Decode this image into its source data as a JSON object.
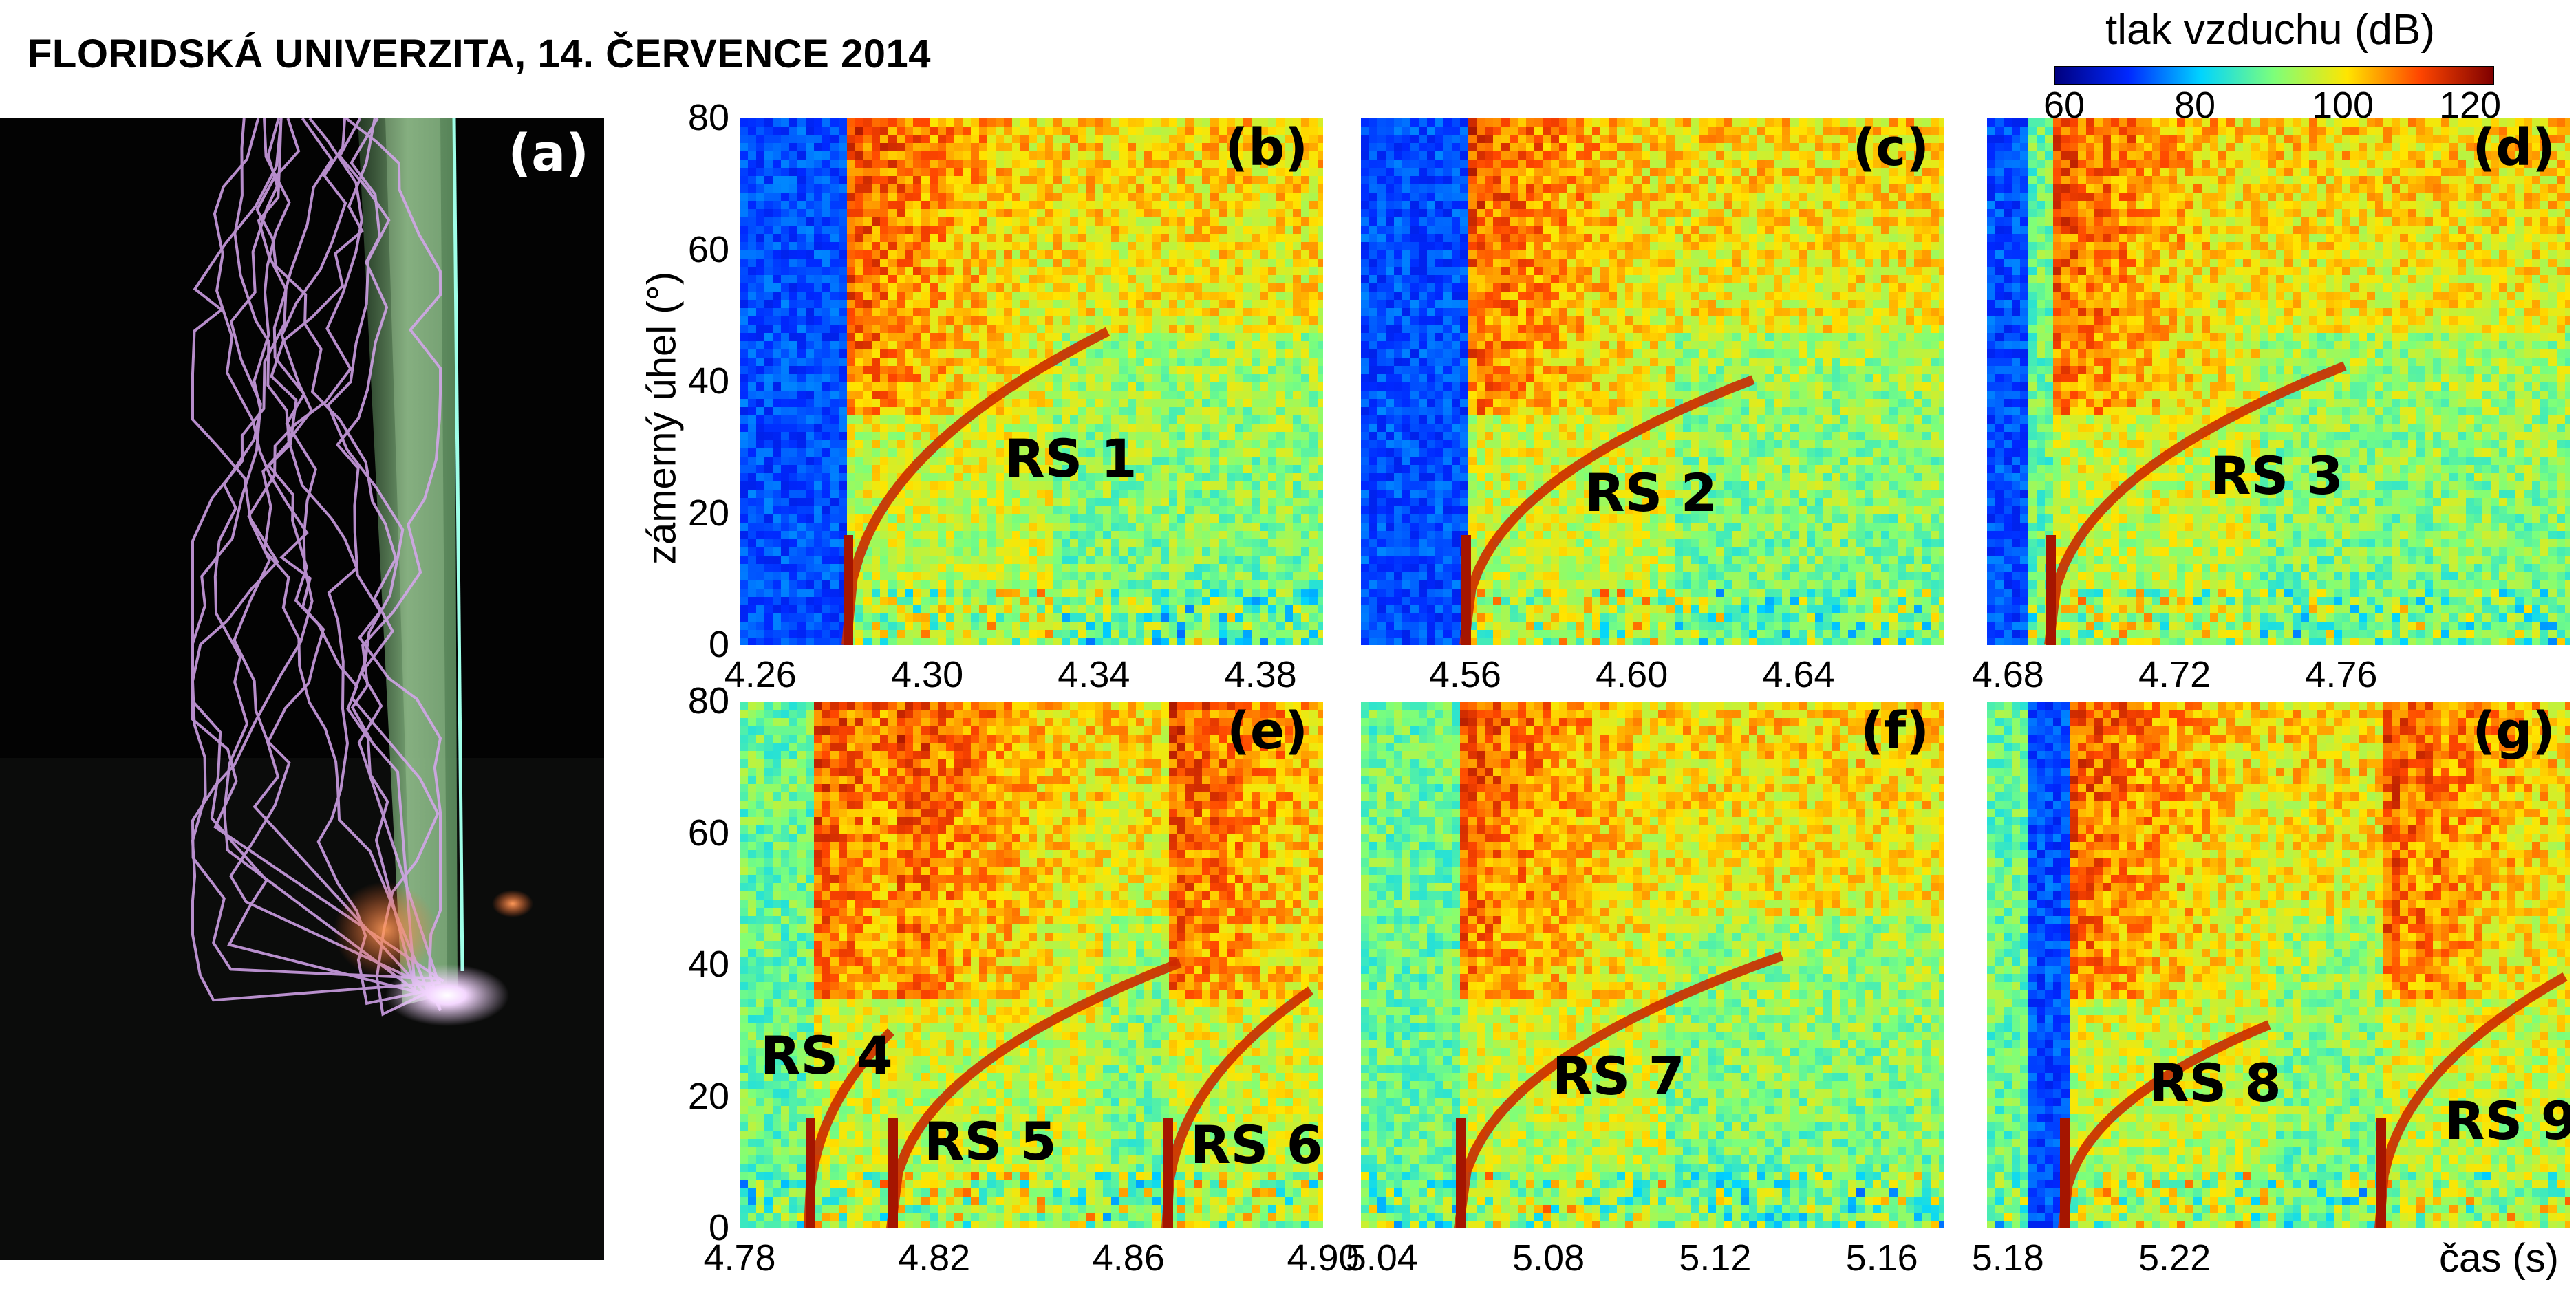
{
  "header": {
    "title": "FLORIDSKÁ UNIVERZITA, 14. ČERVENCE 2014"
  },
  "photo": {
    "label": "(a)"
  },
  "colorbar": {
    "title": "tlak vzduchu (dB)",
    "ticks": [
      "60",
      "80",
      "100",
      "120"
    ],
    "range": [
      60,
      120
    ],
    "colors": [
      "#00007f",
      "#0028ff",
      "#00d4ff",
      "#7dff7a",
      "#ffe500",
      "#ff4600",
      "#7f0000"
    ]
  },
  "chart_data": [
    {
      "type": "heatmap",
      "panel": "(b)",
      "xlim": [
        4.255,
        4.395
      ],
      "ylim": [
        0,
        80
      ],
      "x_ticks": [
        "4.26",
        "4.30",
        "4.34",
        "4.38"
      ],
      "x_tick_values": [
        4.26,
        4.3,
        4.34,
        4.38
      ],
      "y_ticks": [
        "0",
        "20",
        "40",
        "60",
        "80"
      ],
      "ylabel": "zámerný úhel (°)",
      "annotations": [
        {
          "text": "RS 1",
          "x": 4.318,
          "y": 28
        }
      ]
    },
    {
      "type": "heatmap",
      "panel": "(c)",
      "xlim": [
        4.535,
        4.675
      ],
      "ylim": [
        0,
        80
      ],
      "x_ticks": [
        "4.56",
        "4.60",
        "4.64"
      ],
      "x_tick_values": [
        4.56,
        4.6,
        4.64
      ],
      "annotations": [
        {
          "text": "RS 2",
          "x": 4.592,
          "y": 22
        }
      ]
    },
    {
      "type": "heatmap",
      "panel": "(d)",
      "xlim": [
        4.675,
        4.815
      ],
      "ylim": [
        0,
        80
      ],
      "x_ticks": [
        "4.68",
        "4.72",
        "4.76"
      ],
      "x_tick_values": [
        4.68,
        4.72,
        4.76
      ],
      "annotations": [
        {
          "text": "RS 3",
          "x": 4.735,
          "y": 25
        }
      ]
    },
    {
      "type": "heatmap",
      "panel": "(e)",
      "xlim": [
        4.78,
        4.9
      ],
      "ylim": [
        0,
        80
      ],
      "x_ticks": [
        "4.78",
        "4.82",
        "4.86",
        "4.90"
      ],
      "x_tick_values": [
        4.78,
        4.82,
        4.86,
        4.9
      ],
      "y_ticks": [
        "0",
        "20",
        "40",
        "60",
        "80"
      ],
      "annotations": [
        {
          "text": "RS 4",
          "x": 4.786,
          "y": 25
        },
        {
          "text": "RS 5",
          "x": 4.82,
          "y": 13
        },
        {
          "text": "RS 6",
          "x": 4.871,
          "y": 12
        }
      ]
    },
    {
      "type": "heatmap",
      "panel": "(f)",
      "xlim": [
        5.035,
        5.175
      ],
      "ylim": [
        0,
        80
      ],
      "x_ticks": [
        "5.04",
        "5.08",
        "5.12",
        "5.16"
      ],
      "x_tick_values": [
        5.04,
        5.08,
        5.12,
        5.16
      ],
      "annotations": [
        {
          "text": "RS 7",
          "x": 5.078,
          "y": 21
        }
      ]
    },
    {
      "type": "heatmap",
      "panel": "(g)",
      "xlim": [
        5.175,
        5.315
      ],
      "ylim": [
        0,
        80
      ],
      "x_ticks": [
        "5.18",
        "5.22"
      ],
      "x_tick_values": [
        5.18,
        5.22
      ],
      "xlabel": "čas (s)",
      "annotations": [
        {
          "text": "RS 8",
          "x": 5.218,
          "y": 20
        },
        {
          "text": "RS 9",
          "x": 5.285,
          "y": 14
        }
      ]
    }
  ]
}
